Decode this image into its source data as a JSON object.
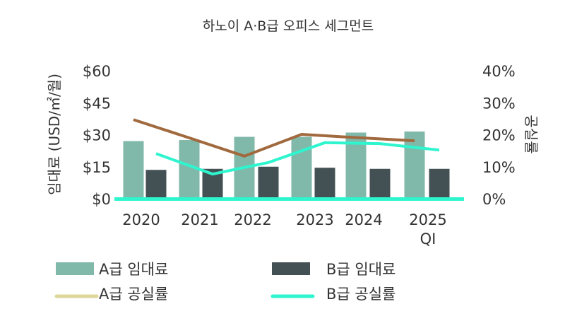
{
  "chart_data": {
    "type": "bar",
    "title": "하노이 A·B급 오피스 세그먼트",
    "ylabel": "임대료 (USD/㎡/월)",
    "y2label": "공실률",
    "ylim": [
      0,
      60
    ],
    "y2lim": [
      0,
      40
    ],
    "yticks": [
      "$0",
      "$15",
      "$30",
      "$45",
      "$60"
    ],
    "y2ticks": [
      "0%",
      "10%",
      "20%",
      "30%",
      "40%"
    ],
    "categories": [
      [
        "2020"
      ],
      [
        "2021"
      ],
      [
        "2022"
      ],
      [
        "2023"
      ],
      [
        "2024"
      ],
      [
        "2025",
        "QI"
      ]
    ],
    "legend_position": "bottom",
    "series": [
      {
        "name": "A급 임대료",
        "kind": "bar",
        "axis": "left",
        "color": "#80b9aa",
        "values": [
          27,
          27.5,
          29,
          29,
          31,
          31.5
        ]
      },
      {
        "name": "B급 임대료",
        "kind": "bar",
        "axis": "left",
        "color": "#435154",
        "values": [
          13.5,
          14,
          15,
          14.5,
          14,
          14
        ]
      },
      {
        "name": "A급 공실률",
        "kind": "line",
        "axis": "right",
        "color": "#a0693e",
        "legend_color": "#ddd79a",
        "values": [
          24.7,
          19,
          13.3,
          20.1,
          19.1,
          18.1
        ]
      },
      {
        "name": "B급 공실률",
        "kind": "line",
        "axis": "right",
        "color": "#2ff5cf",
        "values": [
          14.1,
          7.7,
          11.3,
          17.5,
          17.2,
          15.2
        ]
      }
    ]
  }
}
